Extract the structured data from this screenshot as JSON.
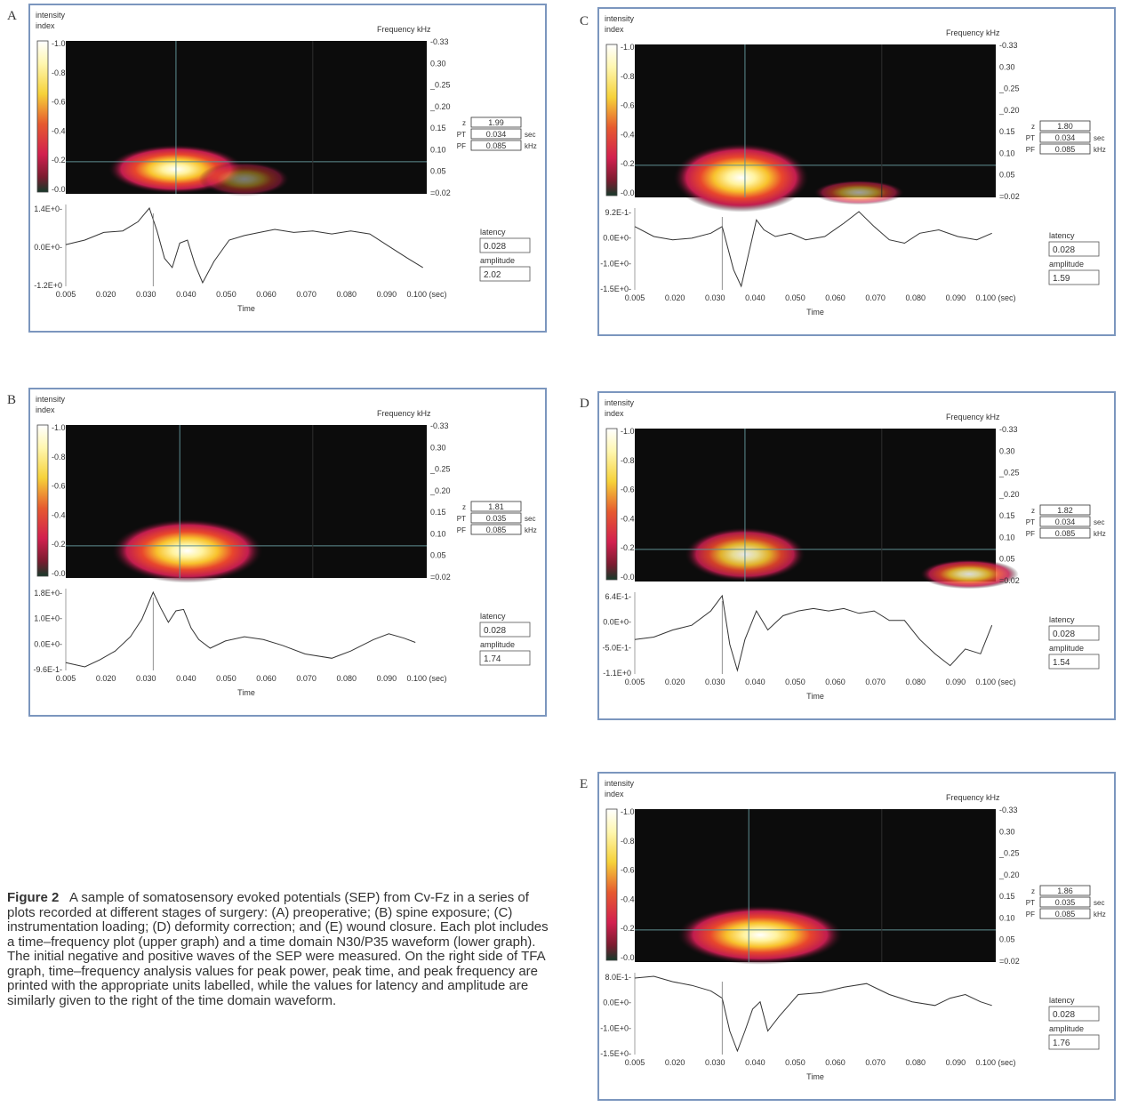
{
  "caption": {
    "label": "Figure 2",
    "text": "A sample of somatosensory evoked potentials (SEP) from Cv-Fz in a series of plots recorded at different stages of surgery: (A) preoperative; (B) spine exposure; (C) instrumentation loading; (D) deformity correction; and (E) wound closure. Each plot includes a time–frequency plot (upper graph) and a time domain N30/P35 waveform (lower graph). The initial negative and positive waves of the SEP were measured. On the right side of TFA graph, time–frequency analysis values for peak power, peak time, and peak frequency are printed with the appropriate units labelled, while the values for latency and amplitude are similarly given to the right of the time domain waveform."
  },
  "common": {
    "intensity_label_1": "intensity",
    "intensity_label_2": "index",
    "colorbar_ticks": [
      "-1.0",
      "-0.8",
      "-0.6",
      "-0.4",
      "-0.2",
      "-0.0"
    ],
    "frequency_label": "Frequency kHz",
    "freq_ticks": [
      "-0.33",
      "0.30",
      "_0.25",
      "_0.20",
      "0.15",
      "0.10",
      "0.05",
      "=0.02"
    ],
    "z_label": "z",
    "pt_label": "PT",
    "pf_label": "PF",
    "sec_unit": "sec",
    "khz_unit": "kHz",
    "latency_label": "latency",
    "amplitude_label": "amplitude",
    "time_label": "Time",
    "time_ticks": [
      "0.005",
      "0.020",
      "0.030",
      "0.040",
      "0.050",
      "0.060",
      "0.070",
      "0.080",
      "0.090",
      "0.100 (sec)"
    ],
    "colors": {
      "frame": "#7b96be",
      "heatmap_bg": "#0c0c0c",
      "cursor": "#5f8f93"
    }
  },
  "chart_data": [
    {
      "type": "heatmap",
      "panel": "A",
      "peak_power_z": "1.99",
      "peak_time": "0.034",
      "peak_frequency": "0.085",
      "latency": "0.028",
      "amplitude": "2.02",
      "ylabels": [
        "1.4E+0-",
        "0.0E+0-",
        "-1.2E+0"
      ],
      "xlim": [
        0.005,
        0.1
      ],
      "blobs": [
        {
          "t": 0.034,
          "f": 0.07,
          "w": 0.018,
          "h": 0.05,
          "i": 1.0
        },
        {
          "t": 0.052,
          "f": 0.05,
          "w": 0.012,
          "h": 0.035,
          "i": 0.45
        }
      ],
      "cursor_t": 0.034,
      "cursor_f": 0.085,
      "waveform": [
        [
          0.005,
          0.15
        ],
        [
          0.01,
          0.3
        ],
        [
          0.015,
          0.55
        ],
        [
          0.02,
          0.6
        ],
        [
          0.024,
          0.9
        ],
        [
          0.027,
          1.35
        ],
        [
          0.029,
          0.6
        ],
        [
          0.031,
          -0.3
        ],
        [
          0.033,
          -0.6
        ],
        [
          0.035,
          0.2
        ],
        [
          0.037,
          0.3
        ],
        [
          0.039,
          -0.5
        ],
        [
          0.041,
          -1.1
        ],
        [
          0.044,
          -0.4
        ],
        [
          0.048,
          0.3
        ],
        [
          0.052,
          0.45
        ],
        [
          0.056,
          0.55
        ],
        [
          0.06,
          0.65
        ],
        [
          0.065,
          0.55
        ],
        [
          0.07,
          0.6
        ],
        [
          0.075,
          0.5
        ],
        [
          0.08,
          0.6
        ],
        [
          0.085,
          0.5
        ],
        [
          0.09,
          0.1
        ],
        [
          0.095,
          -0.3
        ],
        [
          0.099,
          -0.6
        ]
      ]
    },
    {
      "type": "heatmap",
      "panel": "B",
      "peak_power_z": "1.81",
      "peak_time": "0.035",
      "peak_frequency": "0.085",
      "latency": "0.028",
      "amplitude": "1.74",
      "ylabels": [
        "1.8E+0-",
        "1.0E+0-",
        "0.0E+0-",
        "-9.6E-1-"
      ],
      "xlim": [
        0.005,
        0.1
      ],
      "blobs": [
        {
          "t": 0.037,
          "f": 0.075,
          "w": 0.02,
          "h": 0.065,
          "i": 1.0
        }
      ],
      "cursor_t": 0.035,
      "cursor_f": 0.085,
      "waveform": [
        [
          0.005,
          -0.7
        ],
        [
          0.01,
          -0.85
        ],
        [
          0.014,
          -0.6
        ],
        [
          0.018,
          -0.3
        ],
        [
          0.022,
          0.2
        ],
        [
          0.025,
          0.8
        ],
        [
          0.028,
          1.75
        ],
        [
          0.03,
          1.2
        ],
        [
          0.032,
          0.7
        ],
        [
          0.034,
          1.1
        ],
        [
          0.036,
          1.15
        ],
        [
          0.038,
          0.5
        ],
        [
          0.04,
          0.1
        ],
        [
          0.043,
          -0.2
        ],
        [
          0.047,
          0.05
        ],
        [
          0.052,
          0.2
        ],
        [
          0.057,
          0.1
        ],
        [
          0.062,
          -0.1
        ],
        [
          0.068,
          -0.4
        ],
        [
          0.075,
          -0.55
        ],
        [
          0.08,
          -0.3
        ],
        [
          0.086,
          0.1
        ],
        [
          0.09,
          0.3
        ],
        [
          0.094,
          0.15
        ],
        [
          0.097,
          0.0
        ]
      ]
    },
    {
      "type": "heatmap",
      "panel": "C",
      "peak_power_z": "1.80",
      "peak_time": "0.034",
      "peak_frequency": "0.085",
      "latency": "0.028",
      "amplitude": "1.59",
      "ylabels": [
        "9.2E-1-",
        "0.0E+0-",
        "-1.0E+0-",
        "-1.5E+0-"
      ],
      "xlim": [
        0.005,
        0.1
      ],
      "blobs": [
        {
          "t": 0.033,
          "f": 0.06,
          "w": 0.018,
          "h": 0.07,
          "i": 1.0
        },
        {
          "t": 0.064,
          "f": 0.03,
          "w": 0.012,
          "h": 0.025,
          "i": 0.6
        }
      ],
      "cursor_t": 0.034,
      "cursor_f": 0.085,
      "waveform": [
        [
          0.005,
          0.4
        ],
        [
          0.01,
          0.1
        ],
        [
          0.015,
          0.0
        ],
        [
          0.02,
          0.05
        ],
        [
          0.025,
          0.2
        ],
        [
          0.028,
          0.4
        ],
        [
          0.031,
          -0.9
        ],
        [
          0.033,
          -1.4
        ],
        [
          0.035,
          -0.4
        ],
        [
          0.037,
          0.6
        ],
        [
          0.039,
          0.3
        ],
        [
          0.042,
          0.1
        ],
        [
          0.046,
          0.2
        ],
        [
          0.05,
          0.0
        ],
        [
          0.055,
          0.1
        ],
        [
          0.06,
          0.5
        ],
        [
          0.064,
          0.85
        ],
        [
          0.068,
          0.4
        ],
        [
          0.072,
          0.0
        ],
        [
          0.076,
          -0.1
        ],
        [
          0.08,
          0.2
        ],
        [
          0.085,
          0.3
        ],
        [
          0.09,
          0.1
        ],
        [
          0.095,
          0.0
        ],
        [
          0.099,
          0.2
        ]
      ]
    },
    {
      "type": "heatmap",
      "panel": "D",
      "peak_power_z": "1.82",
      "peak_time": "0.034",
      "peak_frequency": "0.085",
      "latency": "0.028",
      "amplitude": "1.54",
      "ylabels": [
        "6.4E-1-",
        "0.0E+0-",
        "-5.0E-1-",
        "-1.1E+0"
      ],
      "xlim": [
        0.005,
        0.1
      ],
      "blobs": [
        {
          "t": 0.034,
          "f": 0.075,
          "w": 0.016,
          "h": 0.055,
          "i": 0.9
        },
        {
          "t": 0.093,
          "f": 0.035,
          "w": 0.013,
          "h": 0.03,
          "i": 0.85
        }
      ],
      "cursor_t": 0.034,
      "cursor_f": 0.085,
      "waveform": [
        [
          0.005,
          -0.3
        ],
        [
          0.01,
          -0.25
        ],
        [
          0.015,
          -0.1
        ],
        [
          0.02,
          0.0
        ],
        [
          0.025,
          0.3
        ],
        [
          0.028,
          0.62
        ],
        [
          0.03,
          -0.4
        ],
        [
          0.032,
          -0.95
        ],
        [
          0.034,
          -0.3
        ],
        [
          0.037,
          0.3
        ],
        [
          0.04,
          -0.1
        ],
        [
          0.044,
          0.2
        ],
        [
          0.048,
          0.3
        ],
        [
          0.052,
          0.35
        ],
        [
          0.056,
          0.3
        ],
        [
          0.06,
          0.35
        ],
        [
          0.064,
          0.25
        ],
        [
          0.068,
          0.3
        ],
        [
          0.072,
          0.1
        ],
        [
          0.076,
          0.1
        ],
        [
          0.08,
          -0.3
        ],
        [
          0.084,
          -0.6
        ],
        [
          0.088,
          -0.85
        ],
        [
          0.092,
          -0.5
        ],
        [
          0.096,
          -0.6
        ],
        [
          0.099,
          0.0
        ]
      ]
    },
    {
      "type": "heatmap",
      "panel": "E",
      "peak_power_z": "1.86",
      "peak_time": "0.035",
      "peak_frequency": "0.085",
      "latency": "0.028",
      "amplitude": "1.76",
      "ylabels": [
        "8.0E-1-",
        "0.0E+0-",
        "-1.0E+0-",
        "-1.5E+0-"
      ],
      "xlim": [
        0.005,
        0.1
      ],
      "blobs": [
        {
          "t": 0.038,
          "f": 0.075,
          "w": 0.022,
          "h": 0.06,
          "i": 1.0
        }
      ],
      "cursor_t": 0.035,
      "cursor_f": 0.085,
      "waveform": [
        [
          0.005,
          0.55
        ],
        [
          0.01,
          0.6
        ],
        [
          0.015,
          0.45
        ],
        [
          0.02,
          0.35
        ],
        [
          0.025,
          0.2
        ],
        [
          0.028,
          0.0
        ],
        [
          0.03,
          -0.9
        ],
        [
          0.032,
          -1.45
        ],
        [
          0.034,
          -0.9
        ],
        [
          0.036,
          -0.3
        ],
        [
          0.038,
          -0.1
        ],
        [
          0.04,
          -0.9
        ],
        [
          0.043,
          -0.5
        ],
        [
          0.048,
          0.1
        ],
        [
          0.054,
          0.15
        ],
        [
          0.06,
          0.3
        ],
        [
          0.066,
          0.4
        ],
        [
          0.072,
          0.1
        ],
        [
          0.078,
          -0.1
        ],
        [
          0.084,
          -0.2
        ],
        [
          0.088,
          0.0
        ],
        [
          0.092,
          0.1
        ],
        [
          0.096,
          -0.1
        ],
        [
          0.099,
          -0.2
        ]
      ]
    }
  ]
}
